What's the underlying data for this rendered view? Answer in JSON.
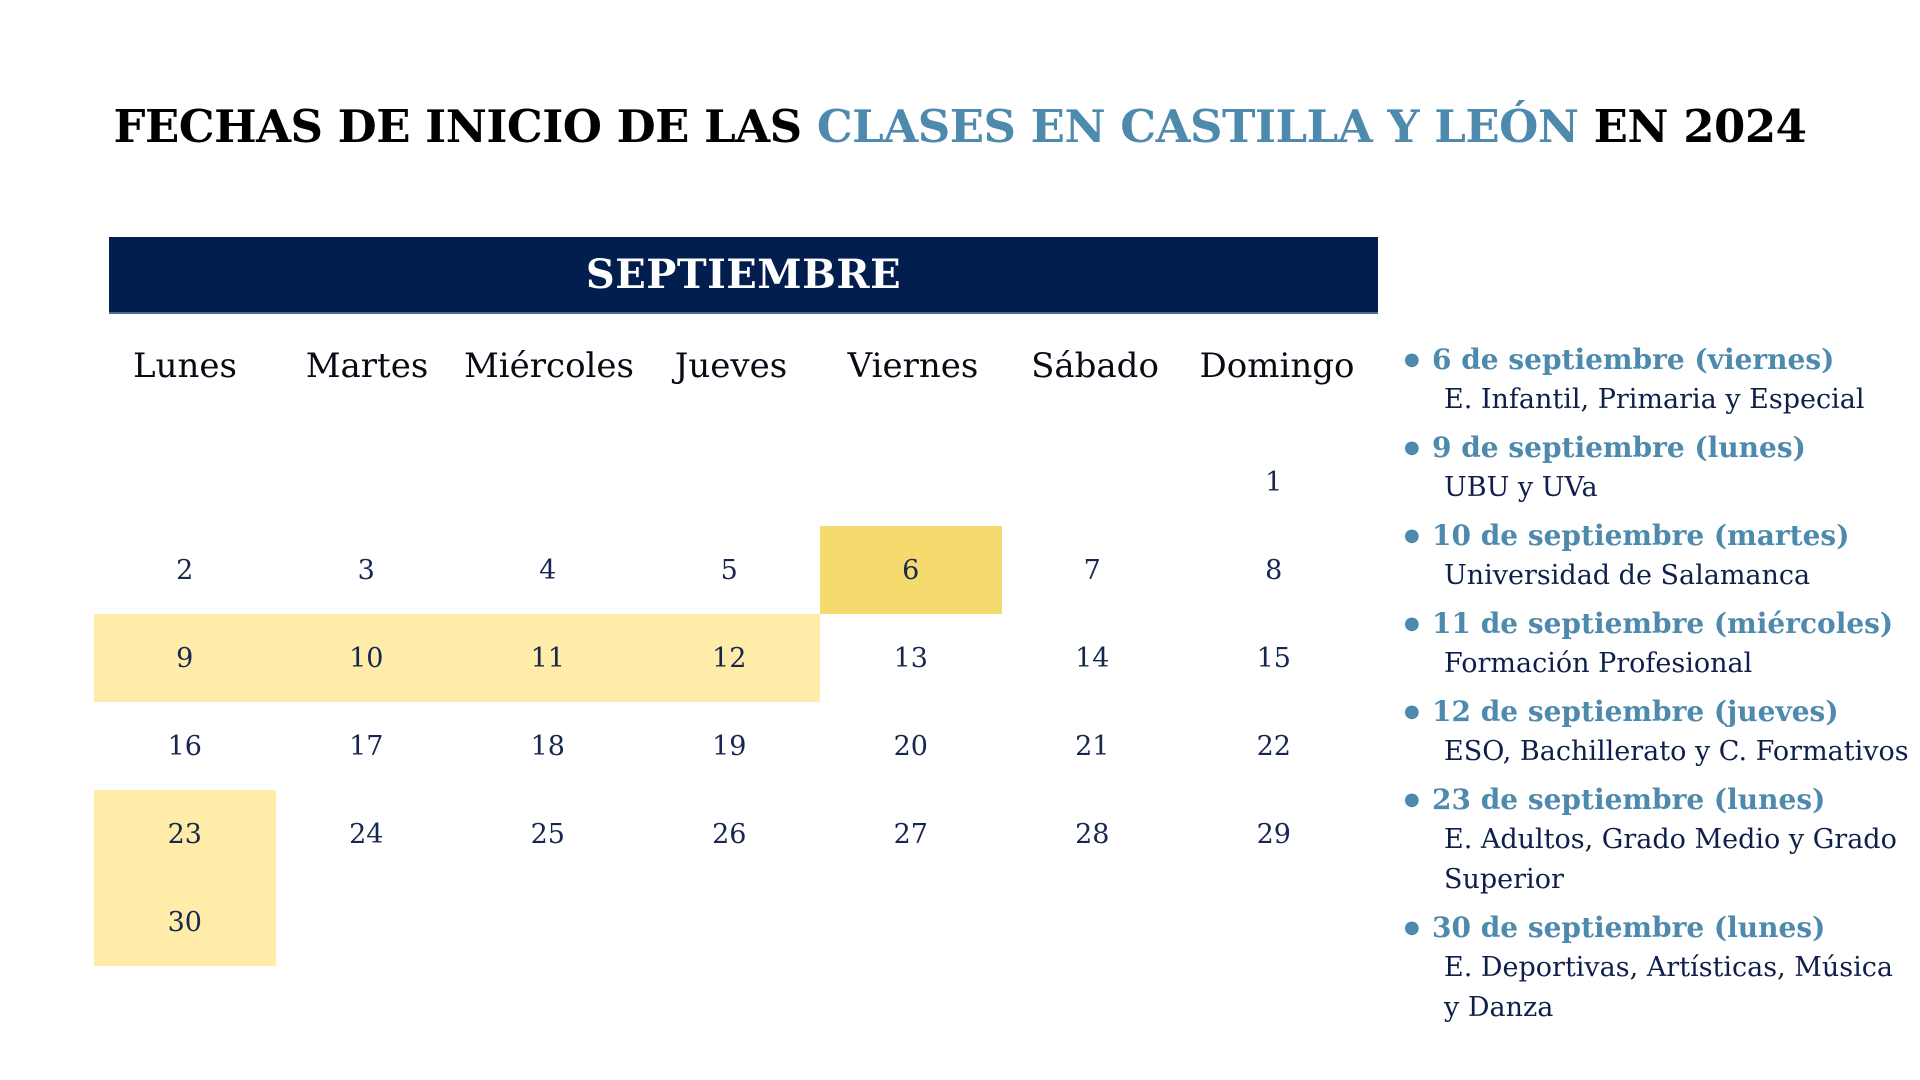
{
  "title": {
    "part1": "FECHAS DE INICIO DE LAS ",
    "accent": "CLASES EN CASTILLA Y LEÓN",
    "part2": " EN 2024"
  },
  "calendar": {
    "month": "SEPTIEMBRE",
    "weekdays": [
      "Lunes",
      "Martes",
      "Miércoles",
      "Jueves",
      "Viernes",
      "Sábado",
      "Domingo"
    ],
    "rows": [
      [
        "",
        "",
        "",
        "",
        "",
        "",
        "1"
      ],
      [
        "2",
        "3",
        "4",
        "5",
        "6",
        "7",
        "8"
      ],
      [
        "9",
        "10",
        "11",
        "12",
        "13",
        "14",
        "15"
      ],
      [
        "16",
        "17",
        "18",
        "19",
        "20",
        "21",
        "22"
      ],
      [
        "23",
        "24",
        "25",
        "26",
        "27",
        "28",
        "29"
      ],
      [
        "30",
        "",
        "",
        "",
        "",
        "",
        ""
      ]
    ],
    "highlight_strong": [
      "6"
    ],
    "highlight_light": [
      "9",
      "10",
      "11",
      "12",
      "23",
      "30"
    ],
    "colors": {
      "banner": "#021e4e",
      "highlight_strong": "#f5da6e",
      "highlight_light": "#feeca8",
      "accent": "#4e8aad"
    }
  },
  "dates_list": [
    {
      "date": "6 de septiembre (viernes)",
      "desc": "E. Infantil, Primaria y Especial"
    },
    {
      "date": "9 de septiembre (lunes)",
      "desc": "UBU y UVa"
    },
    {
      "date": "10 de septiembre (martes)",
      "desc": "Universidad de Salamanca"
    },
    {
      "date": "11 de septiembre (miércoles)",
      "desc": "Formación Profesional"
    },
    {
      "date": "12 de septiembre (jueves)",
      "desc": "ESO, Bachillerato y C. Formativos"
    },
    {
      "date": "23 de septiembre (lunes)",
      "desc": "E. Adultos, Grado Medio y Grado Superior"
    },
    {
      "date": "30 de septiembre (lunes)",
      "desc": "E. Deportivas, Artísticas, Música y Danza"
    }
  ]
}
